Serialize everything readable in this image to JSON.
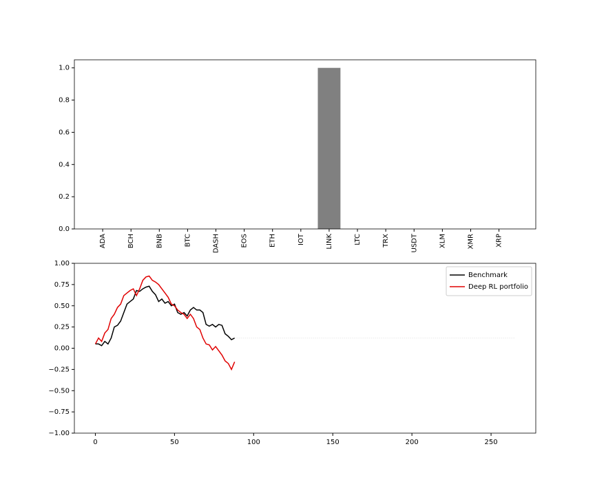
{
  "chart_data": [
    {
      "type": "bar",
      "categories": [
        "ADA",
        "BCH",
        "BNB",
        "BTC",
        "DASH",
        "EOS",
        "ETH",
        "IOT",
        "LINK",
        "LTC",
        "TRX",
        "USDT",
        "XLM",
        "XMR",
        "XRP"
      ],
      "values": [
        0,
        0,
        0,
        0,
        0,
        0,
        0,
        0,
        1.0,
        0,
        0,
        0,
        0,
        0,
        0
      ],
      "color": "#808080",
      "ylim": [
        0,
        1.05
      ],
      "yticks": [
        {
          "value": 0,
          "label": "0.0"
        },
        0.2,
        0.4,
        0.6,
        0.8,
        {
          "value": 1,
          "label": "1.0"
        }
      ]
    },
    {
      "type": "line",
      "legend": "upper right",
      "xlim": [
        -13.25,
        278.25
      ],
      "xticks": [
        0,
        50,
        100,
        150,
        200,
        250
      ],
      "ylim": [
        -1,
        1
      ],
      "yticks": [
        {
          "value": -1,
          "label": "−1.00"
        },
        {
          "value": -0.75,
          "label": "−0.75"
        },
        {
          "value": -0.5,
          "label": "−0.50"
        },
        {
          "value": -0.25,
          "label": "−0.25"
        },
        {
          "value": 0,
          "label": "0.00"
        },
        {
          "value": 0.25,
          "label": "0.25"
        },
        {
          "value": 0.5,
          "label": "0.50"
        },
        {
          "value": 0.75,
          "label": "0.75"
        },
        {
          "value": 1,
          "label": "1.00"
        }
      ],
      "series": [
        {
          "name": "Benchmark",
          "color": "#000000",
          "x": [
            0,
            2,
            4,
            6,
            8,
            10,
            12,
            14,
            16,
            18,
            20,
            22,
            24,
            26,
            28,
            30,
            32,
            34,
            36,
            38,
            40,
            42,
            44,
            46,
            48,
            50,
            52,
            54,
            56,
            58,
            60,
            62,
            64,
            66,
            68,
            70,
            72,
            74,
            76,
            78,
            80,
            82,
            84,
            86,
            88
          ],
          "values": [
            0.05,
            0.05,
            0.03,
            0.08,
            0.05,
            0.12,
            0.25,
            0.27,
            0.32,
            0.42,
            0.52,
            0.55,
            0.58,
            0.68,
            0.67,
            0.7,
            0.72,
            0.73,
            0.67,
            0.63,
            0.55,
            0.58,
            0.53,
            0.55,
            0.5,
            0.52,
            0.42,
            0.4,
            0.42,
            0.38,
            0.45,
            0.48,
            0.45,
            0.45,
            0.42,
            0.28,
            0.26,
            0.28,
            0.25,
            0.28,
            0.27,
            0.17,
            0.14,
            0.1,
            0.12
          ]
        },
        {
          "name": "Deep RL portfolio",
          "color": "#e00000",
          "x": [
            0,
            2,
            4,
            6,
            8,
            10,
            12,
            14,
            16,
            18,
            20,
            22,
            24,
            26,
            28,
            30,
            32,
            34,
            36,
            38,
            40,
            42,
            44,
            46,
            48,
            50,
            52,
            54,
            56,
            58,
            60,
            62,
            64,
            66,
            68,
            70,
            72,
            74,
            76,
            78,
            80,
            82,
            84,
            86,
            88
          ],
          "values": [
            0.05,
            0.12,
            0.08,
            0.18,
            0.22,
            0.35,
            0.4,
            0.48,
            0.52,
            0.62,
            0.65,
            0.68,
            0.7,
            0.62,
            0.7,
            0.8,
            0.84,
            0.85,
            0.8,
            0.78,
            0.75,
            0.7,
            0.65,
            0.6,
            0.52,
            0.5,
            0.45,
            0.42,
            0.4,
            0.35,
            0.4,
            0.35,
            0.25,
            0.22,
            0.12,
            0.05,
            0.04,
            -0.02,
            0.02,
            -0.03,
            -0.08,
            -0.15,
            -0.18,
            -0.25,
            -0.16
          ]
        },
        {
          "color": "#dddddd",
          "x": [
            88,
            265
          ],
          "values": [
            0.12,
            0.12
          ]
        }
      ]
    }
  ]
}
